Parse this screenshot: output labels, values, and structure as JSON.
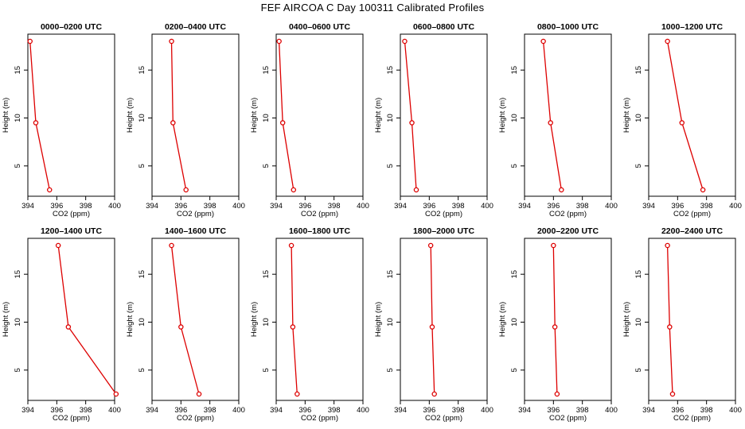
{
  "title": "FEF AIRCOA C  Day 100311  Calibrated Profiles",
  "colors": {
    "series": "#dd0000",
    "axis": "#000000"
  },
  "chart_data": [
    {
      "type": "line",
      "title": "0000–0200 UTC",
      "xlabel": "CO2 (ppm)",
      "ylabel": "Height (m)",
      "xlim": [
        394,
        400
      ],
      "ylim": [
        2,
        18
      ],
      "x": [
        394.15,
        394.55,
        395.5
      ],
      "y": [
        18,
        9.5,
        2.5
      ],
      "xticks": [
        "394",
        "396",
        "398",
        "400"
      ],
      "yticks": [
        "5",
        "10",
        "15"
      ]
    },
    {
      "type": "line",
      "title": "0200–0400 UTC",
      "xlabel": "CO2 (ppm)",
      "ylabel": "Height (m)",
      "xlim": [
        394,
        400
      ],
      "ylim": [
        2,
        18
      ],
      "x": [
        395.35,
        395.45,
        396.35
      ],
      "y": [
        18,
        9.5,
        2.5
      ],
      "xticks": [
        "394",
        "396",
        "398",
        "400"
      ],
      "yticks": [
        "5",
        "10",
        "15"
      ]
    },
    {
      "type": "line",
      "title": "0400–0600 UTC",
      "xlabel": "CO2 (ppm)",
      "ylabel": "Height (m)",
      "xlim": [
        394,
        400
      ],
      "ylim": [
        2,
        18
      ],
      "x": [
        394.2,
        394.45,
        395.2
      ],
      "y": [
        18,
        9.5,
        2.5
      ],
      "xticks": [
        "394",
        "396",
        "398",
        "400"
      ],
      "yticks": [
        "5",
        "10",
        "15"
      ]
    },
    {
      "type": "line",
      "title": "0600–0800 UTC",
      "xlabel": "CO2 (ppm)",
      "ylabel": "Height (m)",
      "xlim": [
        394,
        400
      ],
      "ylim": [
        2,
        18
      ],
      "x": [
        394.3,
        394.8,
        395.1
      ],
      "y": [
        18,
        9.5,
        2.5
      ],
      "xticks": [
        "394",
        "396",
        "398",
        "400"
      ],
      "yticks": [
        "5",
        "10",
        "15"
      ]
    },
    {
      "type": "line",
      "title": "0800–1000 UTC",
      "xlabel": "CO2 (ppm)",
      "ylabel": "Height (m)",
      "xlim": [
        394,
        400
      ],
      "ylim": [
        2,
        18
      ],
      "x": [
        395.3,
        395.8,
        396.55
      ],
      "y": [
        18,
        9.5,
        2.5
      ],
      "xticks": [
        "394",
        "396",
        "398",
        "400"
      ],
      "yticks": [
        "5",
        "10",
        "15"
      ]
    },
    {
      "type": "line",
      "title": "1000–1200 UTC",
      "xlabel": "CO2 (ppm)",
      "ylabel": "Height (m)",
      "xlim": [
        394,
        400
      ],
      "ylim": [
        2,
        18
      ],
      "x": [
        395.3,
        396.3,
        397.75
      ],
      "y": [
        18,
        9.5,
        2.5
      ],
      "xticks": [
        "394",
        "396",
        "398",
        "400"
      ],
      "yticks": [
        "5",
        "10",
        "15"
      ]
    },
    {
      "type": "line",
      "title": "1200–1400 UTC",
      "xlabel": "CO2 (ppm)",
      "ylabel": "Height (m)",
      "xlim": [
        394,
        400
      ],
      "ylim": [
        2,
        18
      ],
      "x": [
        396.1,
        396.8,
        400.1
      ],
      "y": [
        18,
        9.5,
        2.5
      ],
      "xticks": [
        "394",
        "396",
        "398",
        "400"
      ],
      "yticks": [
        "5",
        "10",
        "15"
      ]
    },
    {
      "type": "line",
      "title": "1400–1600 UTC",
      "xlabel": "CO2 (ppm)",
      "ylabel": "Height (m)",
      "xlim": [
        394,
        400
      ],
      "ylim": [
        2,
        18
      ],
      "x": [
        395.35,
        396,
        397.25
      ],
      "y": [
        18,
        9.5,
        2.5
      ],
      "xticks": [
        "394",
        "396",
        "398",
        "400"
      ],
      "yticks": [
        "5",
        "10",
        "15"
      ]
    },
    {
      "type": "line",
      "title": "1600–1800 UTC",
      "xlabel": "CO2 (ppm)",
      "ylabel": "Height (m)",
      "xlim": [
        394,
        400
      ],
      "ylim": [
        2,
        18
      ],
      "x": [
        395.05,
        395.15,
        395.45
      ],
      "y": [
        18,
        9.5,
        2.5
      ],
      "xticks": [
        "394",
        "396",
        "398",
        "400"
      ],
      "yticks": [
        "5",
        "10",
        "15"
      ]
    },
    {
      "type": "line",
      "title": "1800–2000 UTC",
      "xlabel": "CO2 (ppm)",
      "ylabel": "Height (m)",
      "xlim": [
        394,
        400
      ],
      "ylim": [
        2,
        18
      ],
      "x": [
        396.1,
        396.2,
        396.35
      ],
      "y": [
        18,
        9.5,
        2.5
      ],
      "xticks": [
        "394",
        "396",
        "398",
        "400"
      ],
      "yticks": [
        "5",
        "10",
        "15"
      ]
    },
    {
      "type": "line",
      "title": "2000–2200 UTC",
      "xlabel": "CO2 (ppm)",
      "ylabel": "Height (m)",
      "xlim": [
        394,
        400
      ],
      "ylim": [
        2,
        18
      ],
      "x": [
        396,
        396.1,
        396.25
      ],
      "y": [
        18,
        9.5,
        2.5
      ],
      "xticks": [
        "394",
        "396",
        "398",
        "400"
      ],
      "yticks": [
        "5",
        "10",
        "15"
      ]
    },
    {
      "type": "line",
      "title": "2200–2400 UTC",
      "xlabel": "CO2 (ppm)",
      "ylabel": "Height (m)",
      "xlim": [
        394,
        400
      ],
      "ylim": [
        2,
        18
      ],
      "x": [
        395.3,
        395.45,
        395.65
      ],
      "y": [
        18,
        9.5,
        2.5
      ],
      "xticks": [
        "394",
        "396",
        "398",
        "400"
      ],
      "yticks": [
        "5",
        "10",
        "15"
      ]
    }
  ]
}
